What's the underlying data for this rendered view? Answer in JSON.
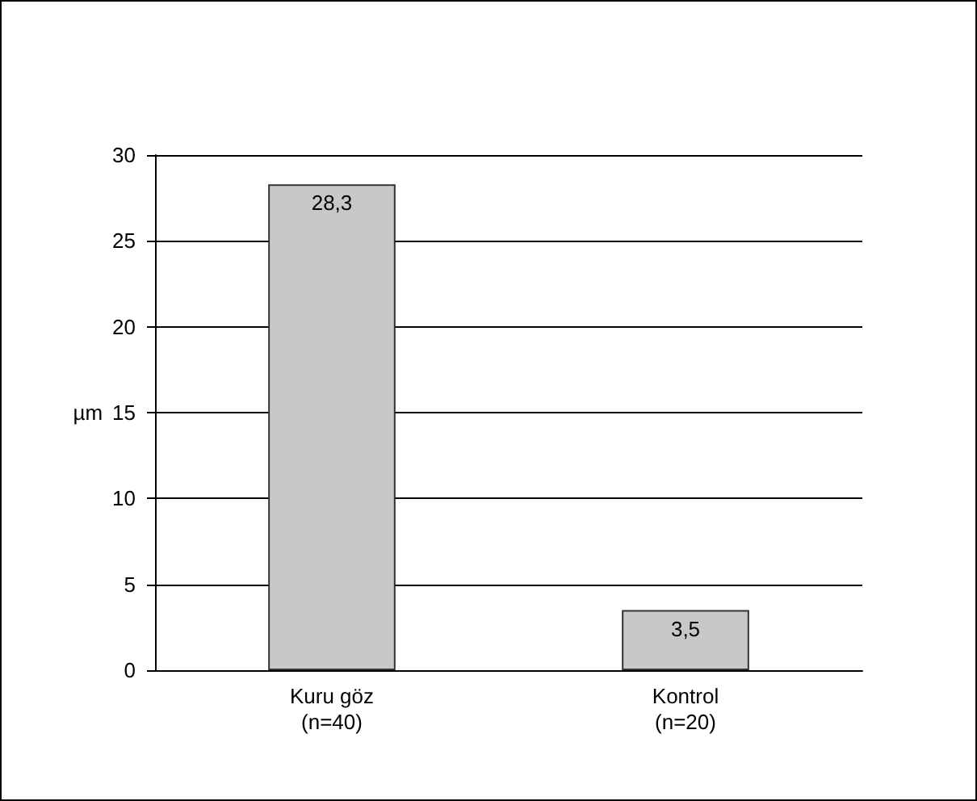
{
  "chart_data": {
    "type": "bar",
    "categories": [
      "Kuru göz\n(n=40)",
      "Kontrol\n(n=20)"
    ],
    "values": [
      28.3,
      3.5
    ],
    "value_labels": [
      "28,3",
      "3,5"
    ],
    "color": "#c8c8c8",
    "ylabel": "µm",
    "ylim": [
      0,
      30
    ],
    "yticks": [
      0,
      5,
      10,
      15,
      20,
      25,
      30
    ],
    "grid": "y"
  }
}
